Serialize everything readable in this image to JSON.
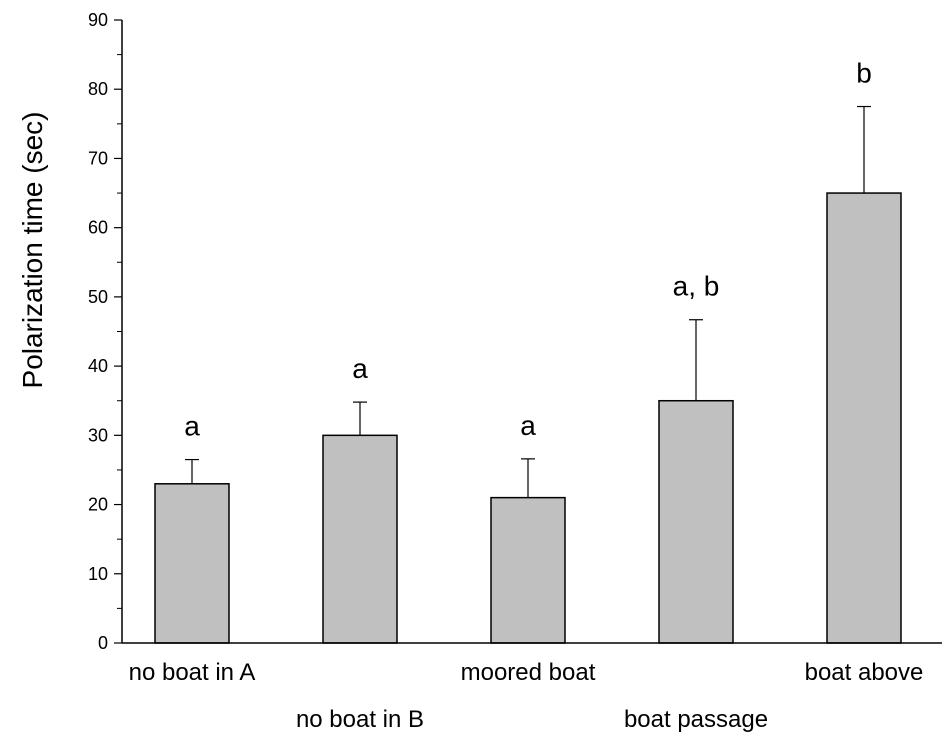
{
  "chart_data": {
    "type": "bar",
    "categories": [
      "no boat in A",
      "no boat in B",
      "moored boat",
      "boat passage",
      "boat above"
    ],
    "values": [
      23,
      30,
      21,
      35,
      65
    ],
    "error_upper": [
      26.5,
      34.8,
      26.6,
      46.7,
      77.5
    ],
    "significance_labels": [
      "a",
      "a",
      "a",
      "a, b",
      "b"
    ],
    "ylabel": "Polarization time (sec)",
    "xlabel": "",
    "ylim": [
      0,
      90
    ],
    "yticks": [
      0,
      10,
      20,
      30,
      40,
      50,
      60,
      70,
      80,
      90
    ],
    "bar_color": "#c0c0c0",
    "grid": false
  }
}
